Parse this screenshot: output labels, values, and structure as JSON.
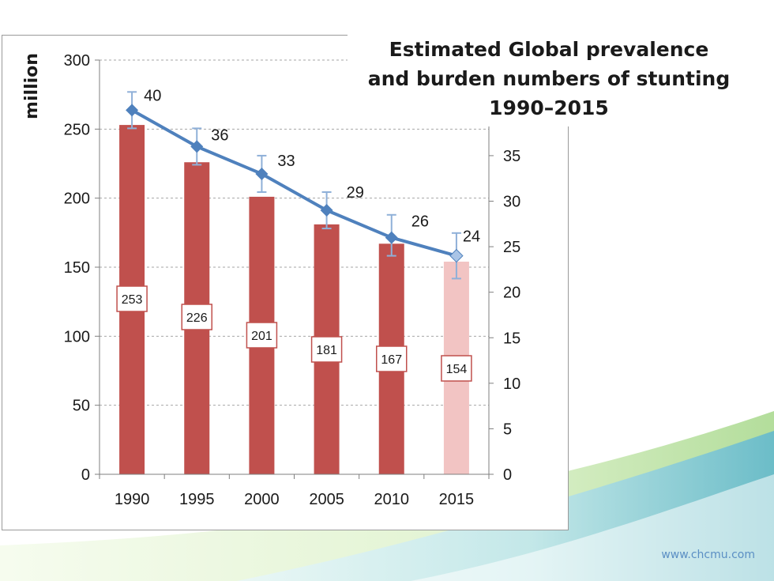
{
  "slide": {
    "title": "Estimated Global prevalence and burden numbers of stunting 1990–2015",
    "footer_url": "www.chcmu.com"
  },
  "colors": {
    "bar": "#c0504d",
    "bar_projected": "#f2c4c3",
    "line": "#4f81bd",
    "label_border": "#c0504d",
    "grid": "#a6a6a6"
  },
  "chart_data": {
    "type": "bar",
    "title": "",
    "categories": [
      "1990",
      "1995",
      "2000",
      "2005",
      "2010",
      "2015"
    ],
    "ylabel": "million",
    "ylim": [
      0,
      300
    ],
    "yticks": [
      0,
      50,
      100,
      150,
      200,
      250,
      300
    ],
    "y2lim": [
      0,
      45.5
    ],
    "y2ticks": [
      0,
      5,
      10,
      15,
      20,
      25,
      30,
      35
    ],
    "grid": true,
    "series": [
      {
        "type": "bar",
        "axis": "left",
        "values": [
          253,
          226,
          201,
          181,
          167,
          154
        ],
        "labels": [
          "253",
          "226",
          "201",
          "181",
          "167",
          "154"
        ],
        "projected_index": 5
      },
      {
        "type": "line",
        "axis": "right",
        "values": [
          40,
          36,
          33,
          29,
          26,
          24
        ],
        "labels": [
          "40",
          "36",
          "33",
          "29",
          "26",
          "24"
        ],
        "error_low": [
          38,
          34,
          31,
          27,
          24,
          21.5
        ],
        "error_high": [
          42,
          38,
          35,
          31,
          28.5,
          26.5
        ]
      }
    ]
  }
}
